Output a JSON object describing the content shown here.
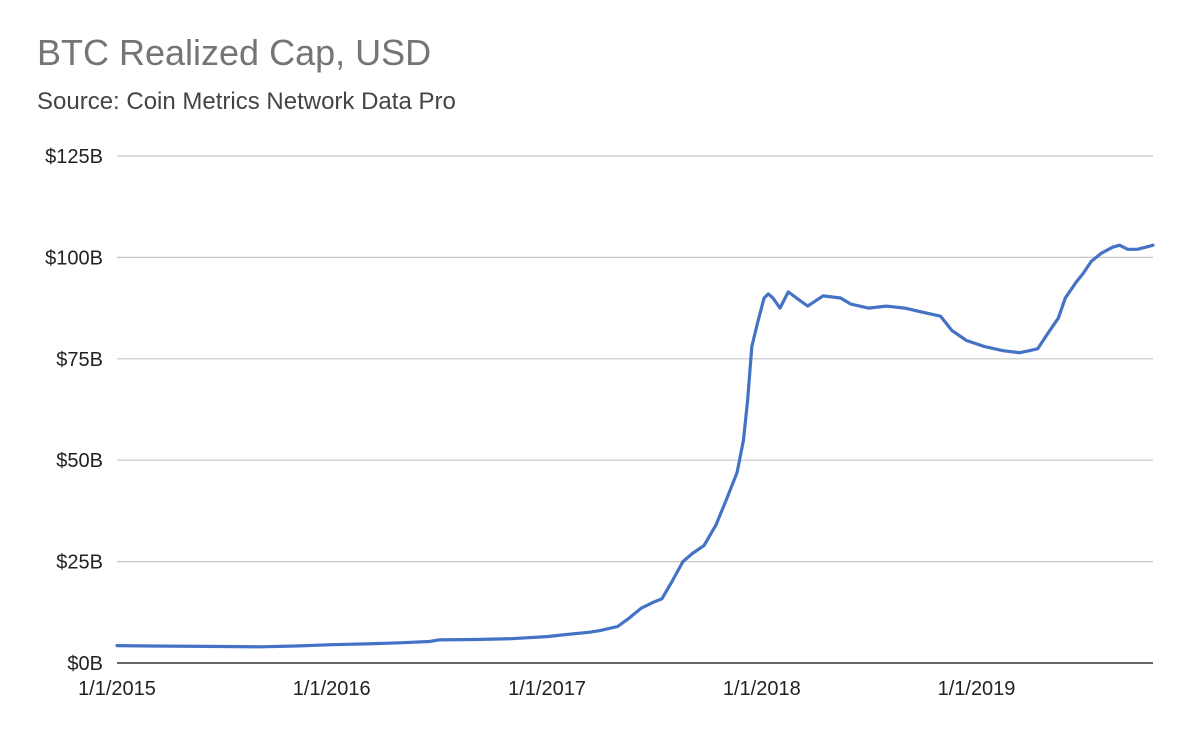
{
  "chart_data": {
    "type": "line",
    "title": "BTC Realized Cap, USD",
    "subtitle": "Source: Coin Metrics Network Data Pro",
    "xlabel": "",
    "ylabel": "",
    "x_tick_labels": [
      "1/1/2015",
      "1/1/2016",
      "1/1/2017",
      "1/1/2018",
      "1/1/2019"
    ],
    "y_tick_labels": [
      "$0B",
      "$25B",
      "$50B",
      "$75B",
      "$100B",
      "$125B"
    ],
    "y_ticks": [
      0,
      25,
      50,
      75,
      100,
      125
    ],
    "ylim": [
      0,
      125
    ],
    "xlim": [
      "2015-01-01",
      "2019-10-28"
    ],
    "grid": true,
    "legend": "none",
    "series": [
      {
        "color": "#4472c4",
        "unit": "USD billions",
        "points": [
          [
            "2015-01-01",
            4.3
          ],
          [
            "2015-03-01",
            4.2
          ],
          [
            "2015-06-01",
            4.1
          ],
          [
            "2015-09-01",
            4.0
          ],
          [
            "2015-11-01",
            4.2
          ],
          [
            "2016-01-01",
            4.5
          ],
          [
            "2016-03-01",
            4.7
          ],
          [
            "2016-05-01",
            5.0
          ],
          [
            "2016-06-15",
            5.3
          ],
          [
            "2016-07-01",
            5.7
          ],
          [
            "2016-09-01",
            5.8
          ],
          [
            "2016-11-01",
            6.0
          ],
          [
            "2017-01-01",
            6.5
          ],
          [
            "2017-02-01",
            7.0
          ],
          [
            "2017-03-15",
            7.6
          ],
          [
            "2017-04-01",
            8.0
          ],
          [
            "2017-05-01",
            9.0
          ],
          [
            "2017-05-20",
            11.0
          ],
          [
            "2017-06-10",
            13.5
          ],
          [
            "2017-07-01",
            15.0
          ],
          [
            "2017-07-15",
            15.8
          ],
          [
            "2017-08-01",
            20.0
          ],
          [
            "2017-08-20",
            25.0
          ],
          [
            "2017-09-05",
            27.0
          ],
          [
            "2017-09-25",
            29.0
          ],
          [
            "2017-10-15",
            34.0
          ],
          [
            "2017-11-01",
            40.0
          ],
          [
            "2017-11-20",
            47.0
          ],
          [
            "2017-12-01",
            55.0
          ],
          [
            "2017-12-08",
            65.0
          ],
          [
            "2017-12-15",
            78.0
          ],
          [
            "2017-12-25",
            84.0
          ],
          [
            "2018-01-05",
            90.0
          ],
          [
            "2018-01-12",
            91.0
          ],
          [
            "2018-01-20",
            90.0
          ],
          [
            "2018-02-01",
            87.5
          ],
          [
            "2018-02-15",
            91.5
          ],
          [
            "2018-03-01",
            90.0
          ],
          [
            "2018-03-20",
            88.0
          ],
          [
            "2018-04-15",
            90.5
          ],
          [
            "2018-05-15",
            90.0
          ],
          [
            "2018-06-01",
            88.5
          ],
          [
            "2018-07-01",
            87.5
          ],
          [
            "2018-08-01",
            88.0
          ],
          [
            "2018-09-01",
            87.5
          ],
          [
            "2018-10-01",
            86.5
          ],
          [
            "2018-11-01",
            85.5
          ],
          [
            "2018-11-20",
            82.0
          ],
          [
            "2018-12-15",
            79.5
          ],
          [
            "2019-01-15",
            78.0
          ],
          [
            "2019-02-15",
            77.0
          ],
          [
            "2019-03-15",
            76.5
          ],
          [
            "2019-04-01",
            77.0
          ],
          [
            "2019-04-15",
            77.5
          ],
          [
            "2019-05-01",
            81.0
          ],
          [
            "2019-05-20",
            85.0
          ],
          [
            "2019-06-01",
            90.0
          ],
          [
            "2019-06-20",
            94.0
          ],
          [
            "2019-07-01",
            96.0
          ],
          [
            "2019-07-15",
            99.0
          ],
          [
            "2019-08-01",
            101.0
          ],
          [
            "2019-08-20",
            102.5
          ],
          [
            "2019-09-01",
            103.0
          ],
          [
            "2019-09-15",
            102.0
          ],
          [
            "2019-10-01",
            102.0
          ],
          [
            "2019-10-15",
            102.5
          ],
          [
            "2019-10-28",
            103.0
          ]
        ]
      }
    ]
  }
}
